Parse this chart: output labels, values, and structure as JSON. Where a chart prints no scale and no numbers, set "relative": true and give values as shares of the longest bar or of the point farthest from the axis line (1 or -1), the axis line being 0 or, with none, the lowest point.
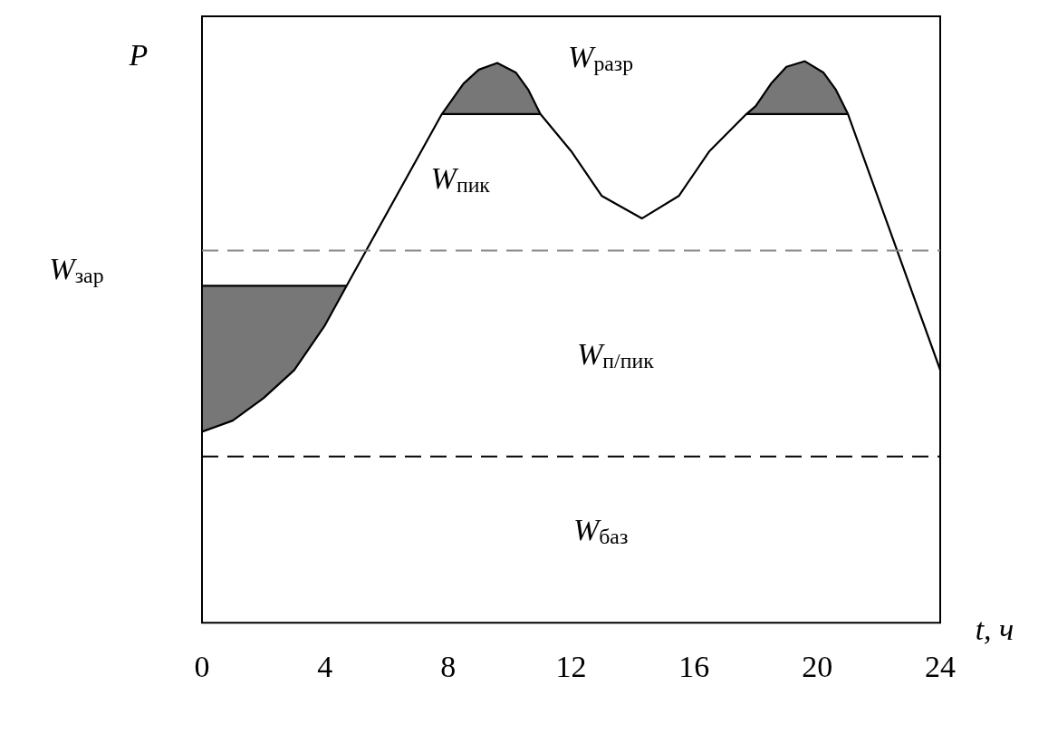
{
  "chart_data": {
    "type": "line",
    "relative": true,
    "xlabel": "t, ч",
    "ylabel": "P",
    "xlim": [
      0,
      24
    ],
    "xticks": [
      0,
      4,
      8,
      12,
      16,
      20,
      24
    ],
    "grid": false,
    "legend": false,
    "marker": "none",
    "line_style": "solid",
    "x": [
      0,
      1,
      2,
      3,
      4,
      4.7,
      7.8,
      8.5,
      9,
      9.6,
      10.2,
      10.6,
      11,
      12,
      13,
      14.3,
      15.5,
      16.5,
      17.7,
      18,
      18.5,
      19,
      19.6,
      20.2,
      20.6,
      21,
      24
    ],
    "series": [
      {
        "color": "#000000",
        "values": [
          0.34,
          0.36,
          0.4,
          0.45,
          0.53,
          0.6,
          0.906,
          0.96,
          0.985,
          0.997,
          0.98,
          0.95,
          0.906,
          0.84,
          0.76,
          0.72,
          0.76,
          0.84,
          0.906,
          0.92,
          0.96,
          0.99,
          1,
          0.98,
          0.95,
          0.906,
          0.45
        ]
      },
      {
        "color": "#000000",
        "x": [
          0,
          1,
          2,
          3,
          4,
          4.7
        ],
        "values": [
          0.6,
          0.6,
          0.6,
          0.6,
          0.6,
          0.6
        ],
        "lower": [
          0.34,
          0.36,
          0.4,
          0.45,
          0.53,
          0.6
        ],
        "upper": [
          0.6,
          0.6,
          0.6,
          0.6,
          0.6,
          0.6
        ]
      },
      {
        "color": "#000000",
        "x": [
          7.8,
          8.5,
          9,
          9.6,
          10.2,
          10.6,
          11
        ],
        "values": [
          0.906,
          0.906,
          0.906,
          0.906,
          0.906,
          0.906,
          0.906
        ],
        "lower": [
          0.906,
          0.906,
          0.906,
          0.906,
          0.906,
          0.906,
          0.906
        ],
        "upper": [
          0.906,
          0.96,
          0.985,
          0.997,
          0.98,
          0.95,
          0.906
        ]
      },
      {
        "color": "#000000",
        "x": [
          17.7,
          18,
          18.5,
          19,
          19.6,
          20.2,
          20.6,
          21
        ],
        "values": [
          0.906,
          0.906,
          0.906,
          0.906,
          0.906,
          0.906,
          0.906,
          0.906
        ],
        "lower": [
          0.906,
          0.906,
          0.906,
          0.906,
          0.906,
          0.906,
          0.906,
          0.906
        ],
        "upper": [
          0.906,
          0.92,
          0.96,
          0.99,
          1,
          0.98,
          0.95,
          0.906
        ]
      }
    ],
    "ref_lines": [
      {
        "axis": "y",
        "value": 0.663,
        "color": "#888888",
        "line_style": "dashed"
      },
      {
        "axis": "y",
        "value": 0.296,
        "color": "#000000",
        "line_style": "dashed"
      }
    ],
    "annotations": [
      "W$_{разр}$",
      "W$_{пик}$",
      "W$_{зар}$",
      "W$_{п/пик}$",
      "W$_{баз}$"
    ]
  }
}
